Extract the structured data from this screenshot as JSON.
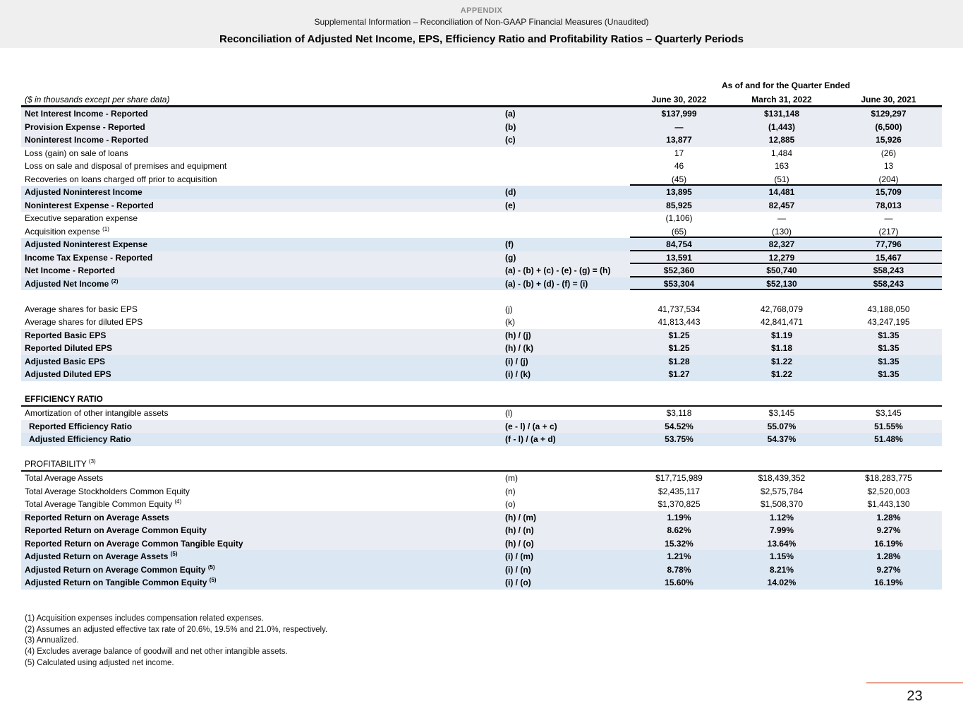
{
  "header": {
    "appendix": "APPENDIX",
    "subtitle": "Supplemental Information – Reconciliation of Non-GAAP Financial Measures (Unaudited)",
    "title": "Reconciliation of Adjusted Net Income, EPS, Efficiency Ratio and Profitability Ratios – Quarterly Periods"
  },
  "table": {
    "group_header": "As of and for the Quarter Ended",
    "units_note": "($ in thousands except per share data)",
    "columns": [
      "June 30, 2022",
      "March 31, 2022",
      "June 30, 2021"
    ],
    "sections": [
      {
        "rows": [
          {
            "label": "Net Interest Income - Reported",
            "ref": "(a)",
            "values": [
              "$137,999",
              "$131,148",
              "$129,297"
            ],
            "band": "reported",
            "bold": true
          },
          {
            "label": "Provision Expense - Reported",
            "ref": "(b)",
            "values": [
              "—",
              "(1,443)",
              "(6,500)"
            ],
            "band": "reported",
            "bold": true
          },
          {
            "label": "Noninterest Income - Reported",
            "ref": "(c)",
            "values": [
              "13,877",
              "12,885",
              "15,926"
            ],
            "band": "reported",
            "bold": true
          },
          {
            "label": "Loss (gain) on sale of loans",
            "ref": "",
            "values": [
              "17",
              "1,484",
              "(26)"
            ],
            "band": "none",
            "bold": false
          },
          {
            "label": "Loss on sale and disposal of premises and equipment",
            "ref": "",
            "values": [
              "46",
              "163",
              "13"
            ],
            "band": "none",
            "bold": false
          },
          {
            "label": "Recoveries on loans charged off prior to acquisition",
            "ref": "",
            "values": [
              "(45)",
              "(51)",
              "(204)"
            ],
            "band": "none",
            "bold": false,
            "border_bottom": true
          },
          {
            "label": "Adjusted Noninterest Income",
            "ref": "(d)",
            "values": [
              "13,895",
              "14,481",
              "15,709"
            ],
            "band": "adjusted",
            "bold": true
          },
          {
            "label": "Noninterest Expense - Reported",
            "ref": "(e)",
            "values": [
              "85,925",
              "82,457",
              "78,013"
            ],
            "band": "reported",
            "bold": true
          },
          {
            "label": "Executive separation expense",
            "ref": "",
            "values": [
              "(1,106)",
              "—",
              "—"
            ],
            "band": "none",
            "bold": false
          },
          {
            "label": "Acquisition expense",
            "sup": "(1)",
            "ref": "",
            "values": [
              "(65)",
              "(130)",
              "(217)"
            ],
            "band": "none",
            "bold": false,
            "border_bottom": true
          },
          {
            "label": "Adjusted Noninterest Expense",
            "ref": "(f)",
            "values": [
              "84,754",
              "82,327",
              "77,796"
            ],
            "band": "adjusted",
            "bold": true,
            "border_bottom": true
          },
          {
            "label": "Income Tax Expense - Reported",
            "ref": "(g)",
            "values": [
              "13,591",
              "12,279",
              "15,467"
            ],
            "band": "reported",
            "bold": true,
            "border_bottom": true
          },
          {
            "label": "Net Income - Reported",
            "ref": "(a) - (b) + (c) - (e) - (g) = (h)",
            "values": [
              "$52,360",
              "$50,740",
              "$58,243"
            ],
            "band": "reported",
            "bold": true,
            "border_bottom": true
          },
          {
            "label": "Adjusted Net Income",
            "sup": "(2)",
            "ref": "(a) - (b) + (d) - (f) = (i)",
            "values": [
              "$53,304",
              "$52,130",
              "$58,243"
            ],
            "band": "adjusted",
            "bold": true,
            "border_bottom": true
          }
        ]
      },
      {
        "gap": true,
        "rows": [
          {
            "label": "Average shares for basic EPS",
            "ref": "(j)",
            "values": [
              "41,737,534",
              "42,768,079",
              "43,188,050"
            ],
            "band": "none",
            "bold": false
          },
          {
            "label": "Average shares for diluted EPS",
            "ref": "(k)",
            "values": [
              "41,813,443",
              "42,841,471",
              "43,247,195"
            ],
            "band": "none",
            "bold": false
          },
          {
            "label": "Reported Basic EPS",
            "ref": "(h) / (j)",
            "values": [
              "$1.25",
              "$1.19",
              "$1.35"
            ],
            "band": "reported",
            "bold": true
          },
          {
            "label": "Reported Diluted EPS",
            "ref": "(h) / (k)",
            "values": [
              "$1.25",
              "$1.18",
              "$1.35"
            ],
            "band": "reported",
            "bold": true
          },
          {
            "label": "Adjusted Basic EPS",
            "ref": "(i) / (j)",
            "values": [
              "$1.28",
              "$1.22",
              "$1.35"
            ],
            "band": "adjusted",
            "bold": true
          },
          {
            "label": "Adjusted Diluted EPS",
            "ref": "(i) / (k)",
            "values": [
              "$1.27",
              "$1.22",
              "$1.35"
            ],
            "band": "adjusted",
            "bold": true
          }
        ]
      },
      {
        "gap": true,
        "heading": {
          "text": "EFFICIENCY RATIO",
          "bold": true
        },
        "rows": [
          {
            "label": "Amortization of other intangible assets",
            "ref": "(l)",
            "values": [
              "$3,118",
              "$3,145",
              "$3,145"
            ],
            "band": "none",
            "bold": false
          },
          {
            "label": "Reported Efficiency Ratio",
            "ref": "(e - l) / (a + c)",
            "values": [
              "54.52%",
              "55.07%",
              "51.55%"
            ],
            "band": "reported",
            "bold": true,
            "indent": true
          },
          {
            "label": "Adjusted Efficiency Ratio",
            "ref": "(f - l) / (a + d)",
            "values": [
              "53.75%",
              "54.37%",
              "51.48%"
            ],
            "band": "adjusted",
            "bold": true,
            "indent": true
          }
        ]
      },
      {
        "gap": true,
        "heading": {
          "text": "PROFITABILITY",
          "sup": "(3)",
          "bold": false
        },
        "rows": [
          {
            "label": "Total Average Assets",
            "ref": "(m)",
            "values": [
              "$17,715,989",
              "$18,439,352",
              "$18,283,775"
            ],
            "band": "none",
            "bold": false
          },
          {
            "label": "Total Average Stockholders Common Equity",
            "ref": "(n)",
            "values": [
              "$2,435,117",
              "$2,575,784",
              "$2,520,003"
            ],
            "band": "none",
            "bold": false
          },
          {
            "label": "Total Average Tangible Common Equity",
            "sup": "(4)",
            "ref": "(o)",
            "values": [
              "$1,370,825",
              "$1,508,370",
              "$1,443,130"
            ],
            "band": "none",
            "bold": false
          },
          {
            "label": "Reported Return on Average Assets",
            "ref": "(h) / (m)",
            "values": [
              "1.19%",
              "1.12%",
              "1.28%"
            ],
            "band": "reported",
            "bold": true
          },
          {
            "label": "Reported Return on Average Common Equity",
            "ref": "(h) / (n)",
            "values": [
              "8.62%",
              "7.99%",
              "9.27%"
            ],
            "band": "reported",
            "bold": true
          },
          {
            "label": "Reported Return on Average Common Tangible Equity",
            "ref": "(h) / (o)",
            "values": [
              "15.32%",
              "13.64%",
              "16.19%"
            ],
            "band": "reported",
            "bold": true
          },
          {
            "label": "Adjusted Return on Average Assets",
            "sup": "(5)",
            "ref": "(i) / (m)",
            "values": [
              "1.21%",
              "1.15%",
              "1.28%"
            ],
            "band": "adjusted",
            "bold": true
          },
          {
            "label": "Adjusted Return on Average Common Equity",
            "sup": "(5)",
            "ref": "(i) / (n)",
            "values": [
              "8.78%",
              "8.21%",
              "9.27%"
            ],
            "band": "adjusted",
            "bold": true
          },
          {
            "label": "Adjusted Return on Tangible Common Equity",
            "sup": "(5)",
            "ref": "(i) / (o)",
            "values": [
              "15.60%",
              "14.02%",
              "16.19%"
            ],
            "band": "adjusted",
            "bold": true
          }
        ]
      }
    ]
  },
  "footnotes": [
    "(1) Acquisition expenses includes compensation related expenses.",
    "(2) Assumes an adjusted effective tax rate of 20.6%, 19.5% and 21.0%,  respectively.",
    "(3) Annualized.",
    "(4) Excludes average balance of goodwill and net other intangible assets.",
    "(5) Calculated using adjusted net income."
  ],
  "page_number": "23",
  "colors": {
    "band_reported": "#e9ecf3",
    "band_adjusted": "#dbe7f3",
    "header_bg": "#efefef",
    "accent_line": "#e9a18b"
  }
}
